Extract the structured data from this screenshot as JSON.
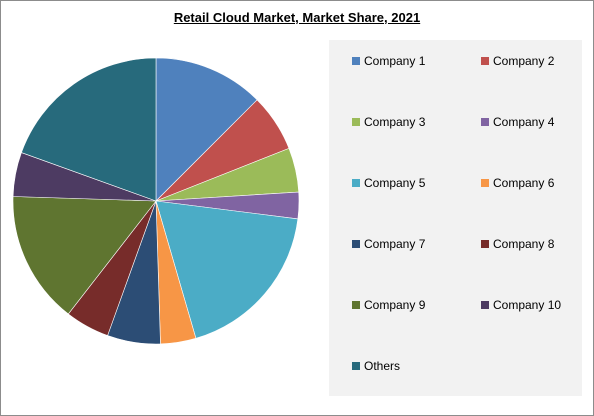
{
  "chart_data": {
    "type": "pie",
    "title": "Retail Cloud Market, Market Share, 2021",
    "slices": [
      {
        "label": "Company 1",
        "value": 12.5,
        "color": "#4f81bd"
      },
      {
        "label": "Company 2",
        "value": 6.5,
        "color": "#c0504d"
      },
      {
        "label": "Company 3",
        "value": 5.0,
        "color": "#9bbb59"
      },
      {
        "label": "Company 4",
        "value": 3.0,
        "color": "#8064a2"
      },
      {
        "label": "Company 5",
        "value": 18.5,
        "color": "#4bacc6"
      },
      {
        "label": "Company 6",
        "value": 4.0,
        "color": "#f79646"
      },
      {
        "label": "Company 7",
        "value": 6.0,
        "color": "#2c4d75"
      },
      {
        "label": "Company 8",
        "value": 5.0,
        "color": "#772c2a"
      },
      {
        "label": "Company 9",
        "value": 15.0,
        "color": "#5f7530"
      },
      {
        "label": "Company 10",
        "value": 5.0,
        "color": "#4d3b62"
      },
      {
        "label": "Others",
        "value": 19.5,
        "color": "#276a7c"
      }
    ],
    "legend_position": "right"
  }
}
